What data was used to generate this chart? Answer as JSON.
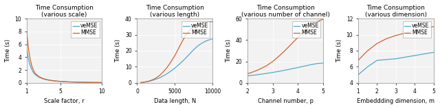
{
  "subplot1": {
    "title": "Time Consumption\n(various scale)",
    "xlabel": "Scale factor, r",
    "ylabel": "Time (s)",
    "xlim": [
      1,
      10
    ],
    "ylim": [
      0,
      10
    ],
    "xticks": [
      1,
      5,
      10
    ],
    "yticks": [
      0,
      2,
      4,
      6,
      8,
      10
    ],
    "veMSE_x": [
      1.0,
      1.2,
      1.4,
      1.6,
      1.8,
      2.0,
      2.5,
      3.0,
      3.5,
      4.0,
      4.5,
      5.0,
      6.0,
      7.0,
      8.0,
      9.0,
      10.0
    ],
    "veMSE_y": [
      5.3,
      3.8,
      2.8,
      2.1,
      1.6,
      1.3,
      0.85,
      0.6,
      0.45,
      0.35,
      0.28,
      0.22,
      0.15,
      0.11,
      0.08,
      0.06,
      0.05
    ],
    "MMSE_x": [
      1.0,
      1.2,
      1.4,
      1.6,
      1.8,
      2.0,
      2.5,
      3.0,
      3.5,
      4.0,
      4.5,
      5.0,
      6.0,
      7.0,
      8.0,
      9.0,
      10.0
    ],
    "MMSE_y": [
      8.0,
      5.5,
      3.8,
      2.7,
      2.0,
      1.5,
      0.95,
      0.65,
      0.48,
      0.37,
      0.29,
      0.23,
      0.15,
      0.11,
      0.08,
      0.06,
      0.05
    ]
  },
  "subplot2": {
    "title": "Time Consumption\n(various length)",
    "xlabel": "Data length, N",
    "ylabel": "Time (s)",
    "xlim": [
      0,
      10000
    ],
    "ylim": [
      0,
      40
    ],
    "xticks": [
      0,
      5000,
      10000
    ],
    "xticklabels": [
      "0",
      "5000",
      "10000"
    ],
    "yticks": [
      0,
      10,
      20,
      30,
      40
    ],
    "veMSE_x": [
      500,
      1000,
      1500,
      2000,
      2500,
      3000,
      3500,
      4000,
      4500,
      5000,
      5500,
      6000,
      6500,
      7000,
      7500,
      8000,
      8500,
      9000,
      9500,
      10000
    ],
    "veMSE_y": [
      0.2,
      0.5,
      0.9,
      1.5,
      2.3,
      3.2,
      4.4,
      5.8,
      7.4,
      9.2,
      11.2,
      13.4,
      15.7,
      18.2,
      20.7,
      22.8,
      24.5,
      25.8,
      26.7,
      27.5
    ],
    "MMSE_x": [
      500,
      1000,
      1500,
      2000,
      2500,
      3000,
      3500,
      4000,
      4500,
      5000,
      5500,
      6000,
      6500,
      7000,
      7500,
      8000,
      8500,
      9000,
      9500,
      10000
    ],
    "MMSE_y": [
      0.2,
      0.5,
      1.0,
      1.8,
      3.0,
      4.7,
      7.0,
      9.8,
      13.2,
      17.0,
      21.5,
      26.0,
      30.0,
      33.0,
      35.0,
      36.5,
      37.2,
      37.6,
      37.9,
      38.1
    ]
  },
  "subplot3": {
    "title": "Time Consumption\n(various number of channel)",
    "xlabel": "Channel number, p",
    "ylabel": "Time (s)",
    "xlim": [
      2,
      5
    ],
    "ylim": [
      0,
      60
    ],
    "xticks": [
      2,
      3,
      4,
      5
    ],
    "yticks": [
      0,
      20,
      40,
      60
    ],
    "veMSE_x": [
      2.0,
      2.25,
      2.5,
      2.75,
      3.0,
      3.25,
      3.5,
      3.75,
      4.0,
      4.25,
      4.5,
      4.75,
      5.0
    ],
    "veMSE_y": [
      6.5,
      7.2,
      8.0,
      8.8,
      9.7,
      10.8,
      11.9,
      13.1,
      14.3,
      15.6,
      16.9,
      18.0,
      18.5
    ],
    "MMSE_x": [
      2.0,
      2.25,
      2.5,
      2.75,
      3.0,
      3.25,
      3.5,
      3.75,
      4.0,
      4.25,
      4.5,
      4.75,
      5.0
    ],
    "MMSE_y": [
      8.5,
      10.5,
      13.0,
      16.0,
      20.0,
      25.0,
      30.5,
      36.5,
      42.5,
      48.0,
      53.0,
      57.0,
      59.5
    ]
  },
  "subplot4": {
    "title": "Time Consumption\n(various dimension)",
    "xlabel": "Embeddding dimension, m",
    "ylabel": "Time (s)",
    "xlim": [
      1,
      5
    ],
    "ylim": [
      4,
      12
    ],
    "xticks": [
      1,
      2,
      3,
      4,
      5
    ],
    "yticks": [
      4,
      6,
      8,
      10,
      12
    ],
    "veMSE_x": [
      1.0,
      1.5,
      2.0,
      2.5,
      3.0,
      3.5,
      4.0,
      4.5,
      5.0
    ],
    "veMSE_y": [
      5.0,
      6.0,
      6.8,
      6.9,
      7.0,
      7.2,
      7.4,
      7.6,
      7.8
    ],
    "MMSE_x": [
      1.0,
      1.5,
      2.0,
      2.5,
      3.0,
      3.5,
      4.0,
      4.5,
      5.0
    ],
    "MMSE_y": [
      6.8,
      8.0,
      8.9,
      9.5,
      9.9,
      10.2,
      10.5,
      10.8,
      11.0
    ]
  },
  "veMSE_color": "#4DAACC",
  "MMSE_color": "#D4622A",
  "legend_labels": [
    "veMSE",
    "MMSE"
  ],
  "title_fontsize": 6.5,
  "label_fontsize": 6,
  "tick_fontsize": 5.5,
  "legend_fontsize": 5.5,
  "bg_color": "#F2F2F2"
}
